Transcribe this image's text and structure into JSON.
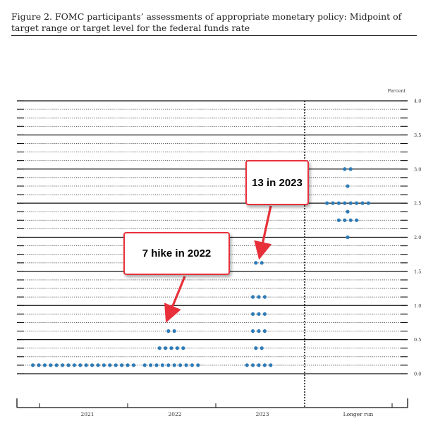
{
  "figure": {
    "title": "Figure 2.  FOMC participants’ assessments of appropriate monetary policy:  Midpoint of target range or target level for the federal funds rate"
  },
  "chart_data": {
    "type": "scatter",
    "ylabel": "Percent",
    "ylim": [
      0.0,
      4.0
    ],
    "y_ticks": [
      "0.0",
      "0.5",
      "1.0",
      "1.5",
      "2.0",
      "2.5",
      "3.0",
      "3.5",
      "4.0"
    ],
    "categories": [
      "2021",
      "2022",
      "2023",
      "Longer run"
    ],
    "dot_color": "#2e7bb6",
    "dots": [
      {
        "category": "2021",
        "y": 0.125,
        "count": 18
      },
      {
        "category": "2022",
        "y": 0.125,
        "count": 10
      },
      {
        "category": "2022",
        "y": 0.375,
        "count": 5
      },
      {
        "category": "2022",
        "y": 0.625,
        "count": 2
      },
      {
        "category": "2023",
        "y": 0.125,
        "count": 5
      },
      {
        "category": "2023",
        "y": 0.375,
        "count": 2
      },
      {
        "category": "2023",
        "y": 0.625,
        "count": 3
      },
      {
        "category": "2023",
        "y": 0.875,
        "count": 3
      },
      {
        "category": "2023",
        "y": 1.125,
        "count": 3
      },
      {
        "category": "2023",
        "y": 1.625,
        "count": 2
      },
      {
        "category": "Longer run",
        "y": 2.0,
        "count": 1
      },
      {
        "category": "Longer run",
        "y": 2.25,
        "count": 4
      },
      {
        "category": "Longer run",
        "y": 2.375,
        "count": 1
      },
      {
        "category": "Longer run",
        "y": 2.5,
        "count": 8
      },
      {
        "category": "Longer run",
        "y": 2.75,
        "count": 1
      },
      {
        "category": "Longer run",
        "y": 3.0,
        "count": 2
      }
    ],
    "annotations": [
      {
        "text": "7 hike in 2022",
        "target_category": "2022",
        "target_y": 0.875
      },
      {
        "text": "13 in 2023",
        "target_category": "2023",
        "target_y": 1.75
      }
    ],
    "annotation_color": "#e8303a"
  }
}
